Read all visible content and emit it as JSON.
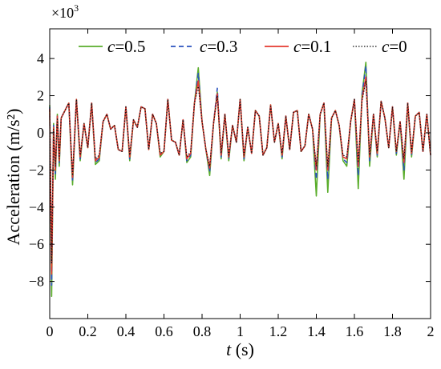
{
  "chart_data": {
    "type": "line",
    "title": "",
    "xlabel_var": "t",
    "xlabel_unit": " (s)",
    "ylabel": "Acceleration (m/s²)",
    "y_multiplier_base": "×10",
    "y_multiplier_exp": "3",
    "xlim": [
      0,
      2
    ],
    "ylim": [
      -10,
      5.6
    ],
    "x_ticks": [
      0,
      0.2,
      0.4,
      0.6,
      0.8,
      1,
      1.2,
      1.4,
      1.6,
      1.8,
      2
    ],
    "x_tick_labels": [
      "0",
      "0.2",
      "0.4",
      "0.6",
      "0.8",
      "1",
      "1.2",
      "1.4",
      "1.6",
      "1.8",
      "2"
    ],
    "y_ticks": [
      -8,
      -6,
      -4,
      -2,
      0,
      2,
      4
    ],
    "y_tick_labels": [
      "−8",
      "−6",
      "−4",
      "−2",
      "0",
      "2",
      "4"
    ],
    "grid": false,
    "legend_position": "top",
    "series": [
      {
        "name": "c=0.5",
        "var": "c",
        "value_text": "=0.5",
        "color": "#5aad2b",
        "dash": "solid",
        "x": [
          0,
          0.01,
          0.02,
          0.03,
          0.04,
          0.05,
          0.06,
          0.08,
          0.1,
          0.12,
          0.14,
          0.16,
          0.18,
          0.2,
          0.22,
          0.24,
          0.26,
          0.28,
          0.3,
          0.32,
          0.34,
          0.36,
          0.38,
          0.4,
          0.42,
          0.44,
          0.46,
          0.48,
          0.5,
          0.52,
          0.54,
          0.56,
          0.58,
          0.6,
          0.62,
          0.64,
          0.66,
          0.68,
          0.7,
          0.72,
          0.74,
          0.76,
          0.78,
          0.8,
          0.82,
          0.84,
          0.86,
          0.88,
          0.9,
          0.92,
          0.94,
          0.96,
          0.98,
          1,
          1.02,
          1.04,
          1.06,
          1.08,
          1.1,
          1.12,
          1.14,
          1.16,
          1.18,
          1.2,
          1.22,
          1.24,
          1.26,
          1.28,
          1.3,
          1.32,
          1.34,
          1.36,
          1.38,
          1.4,
          1.42,
          1.44,
          1.46,
          1.48,
          1.5,
          1.52,
          1.54,
          1.56,
          1.58,
          1.6,
          1.62,
          1.64,
          1.66,
          1.68,
          1.7,
          1.72,
          1.74,
          1.76,
          1.78,
          1.8,
          1.82,
          1.84,
          1.86,
          1.88,
          1.9,
          1.92,
          1.94,
          1.96,
          1.98,
          2
        ],
        "y": [
          1.5,
          -8.8,
          0.5,
          -2.5,
          1,
          -1.8,
          0.8,
          1.2,
          1.6,
          -2.8,
          1.8,
          -1.5,
          0.5,
          -0.8,
          1.6,
          -1.7,
          -1.5,
          0.6,
          1.0,
          0.2,
          0.4,
          -0.9,
          -1.0,
          1.4,
          -1.5,
          0.7,
          0.3,
          1.4,
          1.3,
          -0.9,
          1.0,
          0.5,
          -1.3,
          -1.0,
          1.8,
          -0.4,
          -0.5,
          -1.2,
          0.7,
          -1.6,
          -1.3,
          1.6,
          3.5,
          0.6,
          -0.9,
          -2.3,
          0.5,
          2.2,
          -1.4,
          1.0,
          -1.5,
          0.4,
          -0.5,
          1.8,
          -1.5,
          0.3,
          -1.1,
          1.2,
          0.9,
          -1.2,
          -0.8,
          1.5,
          -0.5,
          0.5,
          -1.4,
          0.9,
          -0.9,
          1.1,
          1.2,
          -1.0,
          -0.7,
          1.0,
          0.2,
          -3.4,
          1.0,
          1.6,
          -3.2,
          0.8,
          1.2,
          0.4,
          -1.5,
          -1.8,
          0.6,
          1.8,
          -3.0,
          2.1,
          3.8,
          -1.8,
          1.0,
          -1.3,
          1.7,
          0.8,
          -0.8,
          1.4,
          -1.2,
          0.6,
          -2.5,
          1.6,
          -1.3,
          0.9,
          1.1,
          -1.0,
          1.0,
          -1.2
        ]
      },
      {
        "name": "c=0.3",
        "var": "c",
        "value_text": "=0.3",
        "color": "#2a52be",
        "dash": "6,4",
        "x": [
          0,
          0.01,
          0.02,
          0.03,
          0.04,
          0.05,
          0.06,
          0.08,
          0.1,
          0.12,
          0.14,
          0.16,
          0.18,
          0.2,
          0.22,
          0.24,
          0.26,
          0.28,
          0.3,
          0.32,
          0.34,
          0.36,
          0.38,
          0.4,
          0.42,
          0.44,
          0.46,
          0.48,
          0.5,
          0.52,
          0.54,
          0.56,
          0.58,
          0.6,
          0.62,
          0.64,
          0.66,
          0.68,
          0.7,
          0.72,
          0.74,
          0.76,
          0.78,
          0.8,
          0.82,
          0.84,
          0.86,
          0.88,
          0.9,
          0.92,
          0.94,
          0.96,
          0.98,
          1,
          1.02,
          1.04,
          1.06,
          1.08,
          1.1,
          1.12,
          1.14,
          1.16,
          1.18,
          1.2,
          1.22,
          1.24,
          1.26,
          1.28,
          1.3,
          1.32,
          1.34,
          1.36,
          1.38,
          1.4,
          1.42,
          1.44,
          1.46,
          1.48,
          1.5,
          1.52,
          1.54,
          1.56,
          1.58,
          1.6,
          1.62,
          1.64,
          1.66,
          1.68,
          1.7,
          1.72,
          1.74,
          1.76,
          1.78,
          1.8,
          1.82,
          1.84,
          1.86,
          1.88,
          1.9,
          1.92,
          1.94,
          1.96,
          1.98,
          2
        ],
        "y": [
          1.4,
          -8.2,
          0.4,
          -2.2,
          0.9,
          -1.6,
          0.8,
          1.2,
          1.6,
          -2.6,
          1.8,
          -1.4,
          0.5,
          -0.8,
          1.6,
          -1.6,
          -1.4,
          0.6,
          1.0,
          0.2,
          0.4,
          -0.9,
          -1.0,
          1.4,
          -1.4,
          0.7,
          0.3,
          1.4,
          1.3,
          -0.9,
          1.0,
          0.5,
          -1.2,
          -1.0,
          1.8,
          -0.4,
          -0.5,
          -1.2,
          0.7,
          -1.5,
          -1.2,
          1.6,
          3.2,
          0.6,
          -0.9,
          -2.1,
          0.5,
          2.4,
          -1.3,
          1.0,
          -1.4,
          0.4,
          -0.5,
          1.8,
          -1.4,
          0.3,
          -1.1,
          1.2,
          0.9,
          -1.2,
          -0.8,
          1.5,
          -0.5,
          0.5,
          -1.3,
          0.9,
          -0.9,
          1.1,
          1.2,
          -1.0,
          -0.7,
          1.0,
          0.2,
          -2.5,
          1.0,
          1.6,
          -2.5,
          0.8,
          1.2,
          0.4,
          -1.4,
          -1.6,
          0.6,
          1.8,
          -2.3,
          2.0,
          3.6,
          -1.5,
          1.0,
          -1.2,
          1.7,
          0.8,
          -0.8,
          1.4,
          -1.1,
          0.6,
          -2.0,
          1.6,
          -1.2,
          0.9,
          1.1,
          -1.0,
          1.0,
          -1.2
        ]
      },
      {
        "name": "c=0.1",
        "var": "c",
        "value_text": "=0.1",
        "color": "#e53a2f",
        "dash": "solid",
        "x": [
          0,
          0.01,
          0.02,
          0.03,
          0.04,
          0.05,
          0.06,
          0.08,
          0.1,
          0.12,
          0.14,
          0.16,
          0.18,
          0.2,
          0.22,
          0.24,
          0.26,
          0.28,
          0.3,
          0.32,
          0.34,
          0.36,
          0.38,
          0.4,
          0.42,
          0.44,
          0.46,
          0.48,
          0.5,
          0.52,
          0.54,
          0.56,
          0.58,
          0.6,
          0.62,
          0.64,
          0.66,
          0.68,
          0.7,
          0.72,
          0.74,
          0.76,
          0.78,
          0.8,
          0.82,
          0.84,
          0.86,
          0.88,
          0.9,
          0.92,
          0.94,
          0.96,
          0.98,
          1,
          1.02,
          1.04,
          1.06,
          1.08,
          1.1,
          1.12,
          1.14,
          1.16,
          1.18,
          1.2,
          1.22,
          1.24,
          1.26,
          1.28,
          1.3,
          1.32,
          1.34,
          1.36,
          1.38,
          1.4,
          1.42,
          1.44,
          1.46,
          1.48,
          1.5,
          1.52,
          1.54,
          1.56,
          1.58,
          1.6,
          1.62,
          1.64,
          1.66,
          1.68,
          1.7,
          1.72,
          1.74,
          1.76,
          1.78,
          1.8,
          1.82,
          1.84,
          1.86,
          1.88,
          1.9,
          1.92,
          1.94,
          1.96,
          1.98,
          2
        ],
        "y": [
          1.3,
          -7.6,
          0.3,
          -2.0,
          0.9,
          -1.5,
          0.8,
          1.2,
          1.6,
          -2.4,
          1.8,
          -1.3,
          0.5,
          -0.8,
          1.6,
          -1.5,
          -1.3,
          0.6,
          1.0,
          0.2,
          0.4,
          -0.9,
          -1.0,
          1.4,
          -1.3,
          0.7,
          0.3,
          1.4,
          1.3,
          -0.9,
          1.0,
          0.5,
          -1.2,
          -1.0,
          1.8,
          -0.4,
          -0.5,
          -1.2,
          0.7,
          -1.4,
          -1.1,
          1.6,
          2.8,
          0.6,
          -0.9,
          -1.9,
          0.5,
          2.1,
          -1.2,
          1.0,
          -1.3,
          0.4,
          -0.5,
          1.8,
          -1.3,
          0.3,
          -1.1,
          1.2,
          0.9,
          -1.2,
          -0.8,
          1.5,
          -0.5,
          0.5,
          -1.2,
          0.9,
          -0.9,
          1.1,
          1.2,
          -1.0,
          -0.7,
          1.0,
          0.2,
          -2.0,
          1.0,
          1.6,
          -2.0,
          0.8,
          1.2,
          0.4,
          -1.3,
          -1.4,
          0.6,
          1.8,
          -1.8,
          1.8,
          3.0,
          -1.3,
          1.0,
          -1.1,
          1.7,
          0.8,
          -0.8,
          1.4,
          -1.0,
          0.6,
          -1.6,
          1.6,
          -1.1,
          0.9,
          1.1,
          -1.0,
          1.0,
          -1.2
        ]
      },
      {
        "name": "c=0",
        "var": "c",
        "value_text": "=0",
        "color": "#111111",
        "dash": "1.5,2",
        "x": [
          0,
          0.01,
          0.02,
          0.03,
          0.04,
          0.05,
          0.06,
          0.08,
          0.1,
          0.12,
          0.14,
          0.16,
          0.18,
          0.2,
          0.22,
          0.24,
          0.26,
          0.28,
          0.3,
          0.32,
          0.34,
          0.36,
          0.38,
          0.4,
          0.42,
          0.44,
          0.46,
          0.48,
          0.5,
          0.52,
          0.54,
          0.56,
          0.58,
          0.6,
          0.62,
          0.64,
          0.66,
          0.68,
          0.7,
          0.72,
          0.74,
          0.76,
          0.78,
          0.8,
          0.82,
          0.84,
          0.86,
          0.88,
          0.9,
          0.92,
          0.94,
          0.96,
          0.98,
          1,
          1.02,
          1.04,
          1.06,
          1.08,
          1.1,
          1.12,
          1.14,
          1.16,
          1.18,
          1.2,
          1.22,
          1.24,
          1.26,
          1.28,
          1.3,
          1.32,
          1.34,
          1.36,
          1.38,
          1.4,
          1.42,
          1.44,
          1.46,
          1.48,
          1.5,
          1.52,
          1.54,
          1.56,
          1.58,
          1.6,
          1.62,
          1.64,
          1.66,
          1.68,
          1.7,
          1.72,
          1.74,
          1.76,
          1.78,
          1.8,
          1.82,
          1.84,
          1.86,
          1.88,
          1.9,
          1.92,
          1.94,
          1.96,
          1.98,
          2
        ],
        "y": [
          1.2,
          -7.0,
          0.2,
          -1.8,
          0.8,
          -1.4,
          0.8,
          1.2,
          1.6,
          -2.3,
          1.8,
          -1.2,
          0.5,
          -0.8,
          1.6,
          -1.4,
          -1.2,
          0.6,
          1.0,
          0.2,
          0.4,
          -0.9,
          -1.0,
          1.4,
          -1.2,
          0.7,
          0.3,
          1.4,
          1.3,
          -0.9,
          1.0,
          0.5,
          -1.1,
          -1.0,
          1.8,
          -0.4,
          -0.5,
          -1.2,
          0.7,
          -1.3,
          -1.0,
          1.6,
          2.5,
          0.6,
          -0.9,
          -1.8,
          0.5,
          2.0,
          -1.1,
          1.0,
          -1.2,
          0.4,
          -0.5,
          1.8,
          -1.2,
          0.3,
          -1.1,
          1.2,
          0.9,
          -1.2,
          -0.8,
          1.5,
          -0.5,
          0.5,
          -1.1,
          0.9,
          -0.9,
          1.1,
          1.2,
          -1.0,
          -0.7,
          1.0,
          0.2,
          -1.8,
          1.0,
          1.6,
          -1.8,
          0.8,
          1.2,
          0.4,
          -1.2,
          -1.3,
          0.6,
          1.8,
          -1.6,
          1.7,
          2.8,
          -1.2,
          1.0,
          -1.0,
          1.7,
          0.8,
          -0.8,
          1.4,
          -1.0,
          0.6,
          -1.4,
          1.6,
          -1.0,
          0.9,
          1.1,
          -1.0,
          1.0,
          -1.2
        ]
      }
    ]
  }
}
